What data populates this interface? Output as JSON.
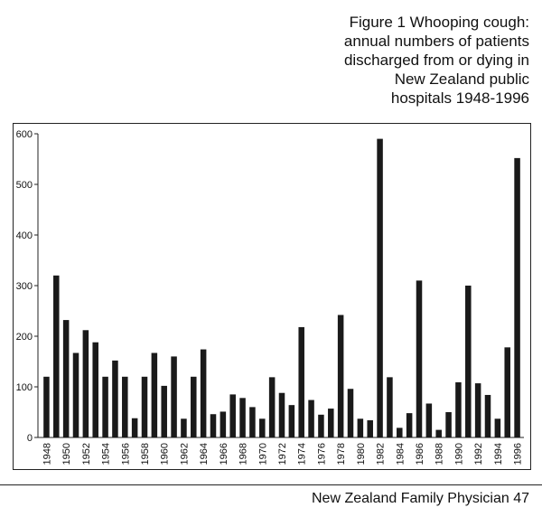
{
  "figure": {
    "title_lines": [
      "Figure 1 Whooping cough:",
      "annual numbers of patients",
      "discharged from or dying in",
      "New Zealand public",
      "hospitals 1948-1996"
    ]
  },
  "footer": {
    "text": "New Zealand Family Physician 47"
  },
  "colors": {
    "bar": "#1a1a1a",
    "axis": "#222222",
    "background": "#ffffff"
  },
  "chart_data": {
    "type": "bar",
    "title": "Figure 1 Whooping cough: annual numbers of patients discharged from or dying in New Zealand public hospitals 1948-1996",
    "xlabel": "",
    "ylabel": "",
    "ylim": [
      0,
      600
    ],
    "yticks": [
      0,
      100,
      200,
      300,
      400,
      500,
      600
    ],
    "grid": false,
    "categories": [
      1948,
      1949,
      1950,
      1951,
      1952,
      1953,
      1954,
      1955,
      1956,
      1957,
      1958,
      1959,
      1960,
      1961,
      1962,
      1963,
      1964,
      1965,
      1966,
      1967,
      1968,
      1969,
      1970,
      1971,
      1972,
      1973,
      1974,
      1975,
      1976,
      1977,
      1978,
      1979,
      1980,
      1981,
      1982,
      1983,
      1984,
      1985,
      1986,
      1987,
      1988,
      1989,
      1990,
      1991,
      1992,
      1993,
      1994,
      1995,
      1996
    ],
    "tick_labels": [
      "1948",
      "1950",
      "1952",
      "1954",
      "1956",
      "1958",
      "1960",
      "1962",
      "1964",
      "1966",
      "1968",
      "1970",
      "1972",
      "1974",
      "1976",
      "1978",
      "1980",
      "1982",
      "1984",
      "1986",
      "1988",
      "1990",
      "1992",
      "1994",
      "1996"
    ],
    "values": [
      120,
      320,
      232,
      167,
      212,
      188,
      120,
      152,
      120,
      38,
      120,
      167,
      102,
      160,
      37,
      120,
      174,
      46,
      51,
      85,
      78,
      60,
      37,
      119,
      88,
      64,
      218,
      74,
      45,
      57,
      242,
      96,
      37,
      34,
      590,
      119,
      19,
      48,
      310,
      67,
      15,
      50,
      109,
      300,
      107,
      84,
      37,
      178,
      552
    ]
  }
}
